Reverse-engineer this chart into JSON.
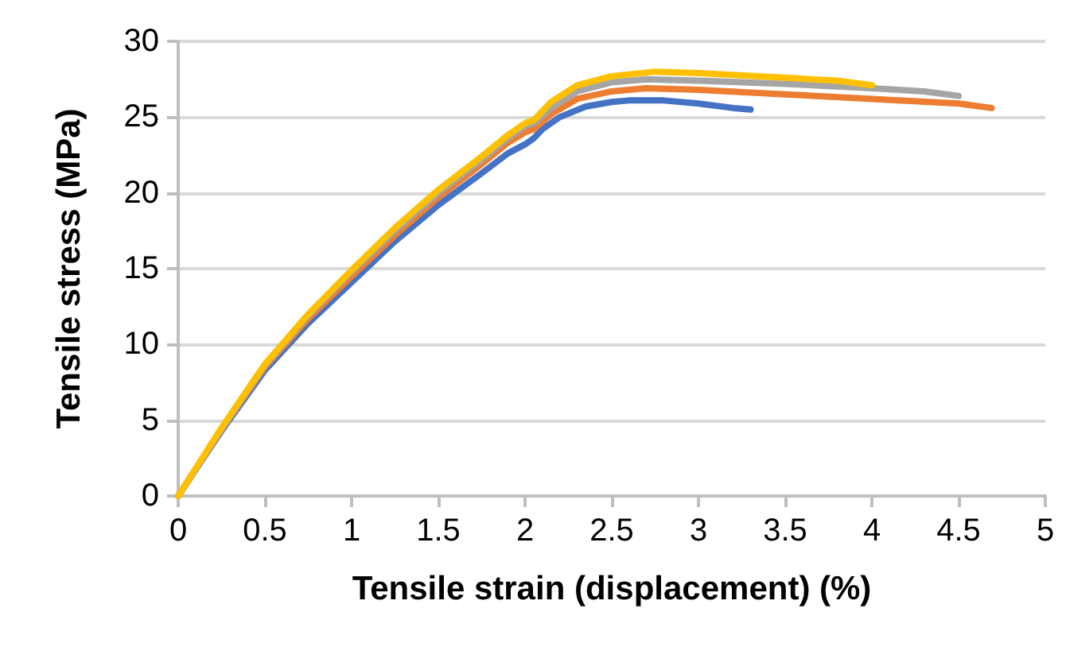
{
  "chart_data": {
    "type": "line",
    "xlabel": "Tensile strain (displacement) (%)",
    "ylabel": "Tensile stress (MPa)",
    "xlim": [
      0,
      5
    ],
    "xticks": [
      0,
      0.5,
      1,
      1.5,
      2,
      2.5,
      3,
      3.5,
      4,
      4.5,
      5
    ],
    "ylim": [
      0,
      30
    ],
    "yticks": [
      0,
      5,
      10,
      15,
      20,
      25,
      30
    ],
    "grid": "y",
    "marker": "none",
    "line_style": "solid",
    "series": [
      {
        "color": "#4472c4",
        "x": [
          0,
          0.25,
          0.5,
          0.75,
          1,
          1.25,
          1.5,
          1.75,
          1.9,
          2,
          2.05,
          2.1,
          2.2,
          2.35,
          2.5,
          2.6,
          2.8,
          3,
          3.2,
          3.3
        ],
        "values": [
          0,
          4.3,
          8.3,
          11.4,
          14.1,
          16.8,
          19.2,
          21.3,
          22.6,
          23.2,
          23.6,
          24.2,
          25.0,
          25.7,
          26.0,
          26.1,
          26.1,
          25.9,
          25.6,
          25.5
        ]
      },
      {
        "color": "#ed7d31",
        "x": [
          0,
          0.25,
          0.5,
          0.75,
          1,
          1.25,
          1.5,
          1.75,
          1.9,
          2,
          2.05,
          2.15,
          2.3,
          2.5,
          2.7,
          3,
          3.5,
          4,
          4.5,
          4.69
        ],
        "values": [
          0,
          4.4,
          8.5,
          11.7,
          14.5,
          17.2,
          19.7,
          21.9,
          23.3,
          24.0,
          24.2,
          25.2,
          26.2,
          26.7,
          26.9,
          26.8,
          26.5,
          26.2,
          25.9,
          25.6
        ]
      },
      {
        "color": "#a5a5a5",
        "x": [
          0,
          0.25,
          0.5,
          0.75,
          1,
          1.25,
          1.5,
          1.75,
          1.9,
          2,
          2.05,
          2.15,
          2.3,
          2.5,
          2.7,
          3,
          3.5,
          4,
          4.3,
          4.5
        ],
        "values": [
          0,
          4.4,
          8.6,
          11.9,
          14.8,
          17.5,
          20.0,
          22.2,
          23.6,
          24.4,
          24.6,
          25.6,
          26.7,
          27.3,
          27.5,
          27.4,
          27.2,
          26.9,
          26.7,
          26.4
        ]
      },
      {
        "color": "#ffc000",
        "x": [
          0,
          0.25,
          0.5,
          0.75,
          1,
          1.25,
          1.5,
          1.75,
          1.9,
          2,
          2.05,
          2.15,
          2.3,
          2.5,
          2.75,
          3,
          3.5,
          3.8,
          4
        ],
        "values": [
          0,
          4.5,
          8.7,
          12.0,
          14.9,
          17.7,
          20.2,
          22.4,
          23.8,
          24.6,
          24.8,
          26.0,
          27.1,
          27.7,
          28.0,
          27.9,
          27.6,
          27.4,
          27.1
        ]
      }
    ]
  }
}
